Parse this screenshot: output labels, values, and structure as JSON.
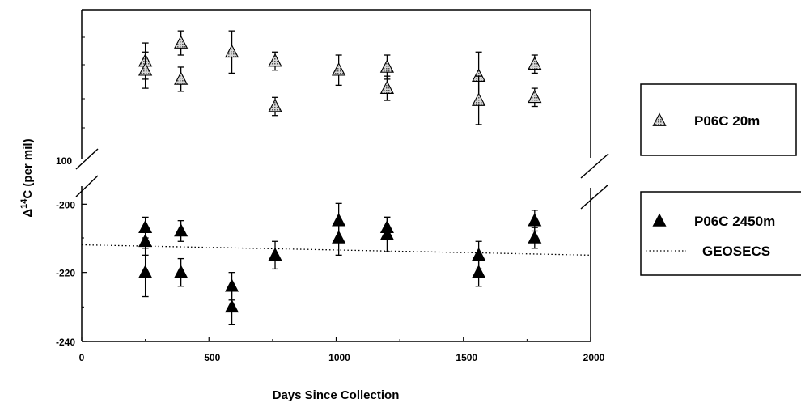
{
  "chart_data": {
    "type": "scatter",
    "title": "",
    "xlabel": "Days Since Collection",
    "ylabel_prefix": "Δ",
    "ylabel_superscript": "14",
    "ylabel_suffix": "C (per mil)",
    "xlim": [
      0,
      2000
    ],
    "x_ticks": [
      "0",
      "500",
      "1000",
      "1500",
      "2000"
    ],
    "lower_ylim": [
      -240,
      -195
    ],
    "lower_y_ticks": [
      "-200",
      "-220",
      "-240"
    ],
    "upper_y_tick": "100",
    "axis_break": true,
    "grid": false,
    "series": [
      {
        "name": "P06C 20m",
        "marker": "hatched-triangle",
        "color": "#9a9a9a",
        "points": [
          {
            "x": 250,
            "y": 128,
            "err": 6
          },
          {
            "x": 250,
            "y": 125,
            "err": 6
          },
          {
            "x": 390,
            "y": 134,
            "err": 4
          },
          {
            "x": 390,
            "y": 122,
            "err": 4
          },
          {
            "x": 590,
            "y": 131,
            "err": 7
          },
          {
            "x": 760,
            "y": 128,
            "err": 3
          },
          {
            "x": 760,
            "y": 113,
            "err": 3
          },
          {
            "x": 1010,
            "y": 125,
            "err": 5
          },
          {
            "x": 1200,
            "y": 126,
            "err": 4
          },
          {
            "x": 1200,
            "y": 119,
            "err": 4
          },
          {
            "x": 1560,
            "y": 123,
            "err": 8
          },
          {
            "x": 1560,
            "y": 115,
            "err": 8
          },
          {
            "x": 1780,
            "y": 127,
            "err": 3
          },
          {
            "x": 1780,
            "y": 116,
            "err": 3
          }
        ]
      },
      {
        "name": "P06C 2450m",
        "marker": "filled-triangle",
        "color": "#000000",
        "points": [
          {
            "x": 250,
            "y": -207,
            "err": 3
          },
          {
            "x": 250,
            "y": -211,
            "err": 4
          },
          {
            "x": 250,
            "y": -220,
            "err": 7
          },
          {
            "x": 390,
            "y": -208,
            "err": 3
          },
          {
            "x": 390,
            "y": -220,
            "err": 4
          },
          {
            "x": 590,
            "y": -224,
            "err": 4
          },
          {
            "x": 590,
            "y": -230,
            "err": 5
          },
          {
            "x": 760,
            "y": -215,
            "err": 4
          },
          {
            "x": 1010,
            "y": -205,
            "err": 5
          },
          {
            "x": 1010,
            "y": -210,
            "err": 5
          },
          {
            "x": 1200,
            "y": -207,
            "err": 3
          },
          {
            "x": 1200,
            "y": -209,
            "err": 5
          },
          {
            "x": 1560,
            "y": -215,
            "err": 4
          },
          {
            "x": 1560,
            "y": -220,
            "err": 4
          },
          {
            "x": 1780,
            "y": -205,
            "err": 3
          },
          {
            "x": 1780,
            "y": -210,
            "err": 3
          }
        ]
      },
      {
        "name": "GEOSECS",
        "type": "line",
        "style": "dotted",
        "x": [
          0,
          2000
        ],
        "y": [
          -212,
          -215
        ]
      }
    ],
    "legend": [
      {
        "label": "P06C 20m",
        "symbol": "hatched-triangle"
      },
      {
        "label": "P06C 2450m",
        "symbol": "filled-triangle"
      },
      {
        "label": "GEOSECS",
        "symbol": "dotted-line"
      }
    ]
  }
}
